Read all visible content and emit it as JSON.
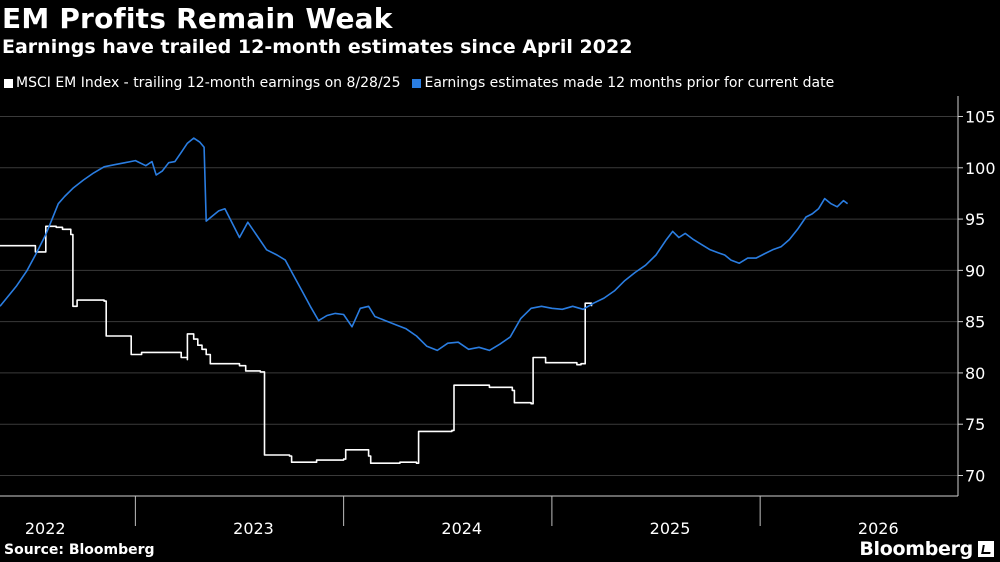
{
  "title": "EM Profits Remain Weak",
  "subtitle": "Earnings have trailed 12-month estimates since April 2022",
  "source": "Source: Bloomberg",
  "brand": "Bloomberg",
  "colors": {
    "background": "#000000",
    "actual": "#ffffff",
    "estimate": "#2a7de1",
    "grid": "#3a3a3a"
  },
  "chart_data": {
    "type": "line",
    "title": "EM Profits Remain Weak",
    "xlabel": "",
    "ylabel": "",
    "xlim": [
      2021.85,
      2026.45
    ],
    "ylim": [
      68,
      107
    ],
    "yticks": [
      70,
      75,
      80,
      85,
      90,
      95,
      100,
      105
    ],
    "xticks": [
      {
        "label": "2022",
        "pos": 2022.0
      },
      {
        "label": "2023",
        "pos": 2023.0
      },
      {
        "label": "2024",
        "pos": 2024.0
      },
      {
        "label": "2025",
        "pos": 2025.0
      },
      {
        "label": "2026",
        "pos": 2026.0
      }
    ],
    "year_boundaries": [
      2022.5,
      2023.5,
      2024.5,
      2025.5
    ],
    "grid": true,
    "legend_position": "top-left",
    "series": [
      {
        "name": "MSCI EM Index - trailing 12-month earnings on 8/28/25",
        "color": "#ffffff",
        "step": true,
        "points": [
          [
            2021.85,
            92.4
          ],
          [
            2022.01,
            92.4
          ],
          [
            2022.02,
            91.8
          ],
          [
            2022.07,
            91.8
          ],
          [
            2022.07,
            94.3
          ],
          [
            2022.12,
            94.2
          ],
          [
            2022.15,
            94.0
          ],
          [
            2022.19,
            93.5
          ],
          [
            2022.2,
            86.5
          ],
          [
            2022.22,
            87.1
          ],
          [
            2022.35,
            87.0
          ],
          [
            2022.36,
            83.6
          ],
          [
            2022.48,
            83.6
          ],
          [
            2022.48,
            81.8
          ],
          [
            2022.53,
            82.0
          ],
          [
            2022.72,
            81.5
          ],
          [
            2022.75,
            81.3
          ],
          [
            2022.75,
            83.8
          ],
          [
            2022.78,
            83.3
          ],
          [
            2022.8,
            82.7
          ],
          [
            2022.82,
            82.3
          ],
          [
            2022.84,
            81.8
          ],
          [
            2022.86,
            80.9
          ],
          [
            2023.0,
            80.7
          ],
          [
            2023.03,
            80.2
          ],
          [
            2023.1,
            80.1
          ],
          [
            2023.12,
            72.0
          ],
          [
            2023.24,
            71.9
          ],
          [
            2023.25,
            71.3
          ],
          [
            2023.37,
            71.5
          ],
          [
            2023.5,
            71.6
          ],
          [
            2023.51,
            72.5
          ],
          [
            2023.62,
            71.9
          ],
          [
            2023.63,
            71.2
          ],
          [
            2023.77,
            71.3
          ],
          [
            2023.85,
            71.2
          ],
          [
            2023.86,
            74.3
          ],
          [
            2024.02,
            74.4
          ],
          [
            2024.03,
            78.8
          ],
          [
            2024.12,
            78.8
          ],
          [
            2024.2,
            78.6
          ],
          [
            2024.31,
            78.3
          ],
          [
            2024.32,
            77.1
          ],
          [
            2024.4,
            77.0
          ],
          [
            2024.41,
            81.5
          ],
          [
            2024.47,
            81.0
          ],
          [
            2024.62,
            80.8
          ],
          [
            2024.64,
            80.9
          ],
          [
            2024.66,
            86.8
          ],
          [
            2024.69,
            86.5
          ]
        ]
      },
      {
        "name": "Earnings estimates made 12 months prior for current date",
        "color": "#2a7de1",
        "step": false,
        "points": [
          [
            2021.85,
            86.5
          ],
          [
            2021.93,
            88.5
          ],
          [
            2021.98,
            90.0
          ],
          [
            2022.02,
            91.5
          ],
          [
            2022.07,
            93.5
          ],
          [
            2022.1,
            95.0
          ],
          [
            2022.13,
            96.5
          ],
          [
            2022.16,
            97.2
          ],
          [
            2022.2,
            98.0
          ],
          [
            2022.25,
            98.8
          ],
          [
            2022.3,
            99.5
          ],
          [
            2022.35,
            100.1
          ],
          [
            2022.4,
            100.3
          ],
          [
            2022.45,
            100.5
          ],
          [
            2022.5,
            100.7
          ],
          [
            2022.55,
            100.2
          ],
          [
            2022.58,
            100.6
          ],
          [
            2022.6,
            99.3
          ],
          [
            2022.63,
            99.7
          ],
          [
            2022.66,
            100.5
          ],
          [
            2022.69,
            100.6
          ],
          [
            2022.72,
            101.5
          ],
          [
            2022.75,
            102.4
          ],
          [
            2022.78,
            102.9
          ],
          [
            2022.81,
            102.5
          ],
          [
            2022.83,
            102.0
          ],
          [
            2022.84,
            94.8
          ],
          [
            2022.87,
            95.3
          ],
          [
            2022.9,
            95.8
          ],
          [
            2022.93,
            96.0
          ],
          [
            2022.96,
            94.8
          ],
          [
            2023.0,
            93.2
          ],
          [
            2023.04,
            94.7
          ],
          [
            2023.08,
            93.5
          ],
          [
            2023.13,
            92.0
          ],
          [
            2023.18,
            91.5
          ],
          [
            2023.22,
            91.0
          ],
          [
            2023.26,
            89.5
          ],
          [
            2023.3,
            88.0
          ],
          [
            2023.34,
            86.5
          ],
          [
            2023.38,
            85.1
          ],
          [
            2023.42,
            85.6
          ],
          [
            2023.46,
            85.8
          ],
          [
            2023.5,
            85.7
          ],
          [
            2023.54,
            84.5
          ],
          [
            2023.58,
            86.3
          ],
          [
            2023.62,
            86.5
          ],
          [
            2023.65,
            85.5
          ],
          [
            2023.7,
            85.1
          ],
          [
            2023.75,
            84.7
          ],
          [
            2023.8,
            84.3
          ],
          [
            2023.85,
            83.6
          ],
          [
            2023.9,
            82.6
          ],
          [
            2023.95,
            82.2
          ],
          [
            2024.0,
            82.9
          ],
          [
            2024.05,
            83.0
          ],
          [
            2024.1,
            82.3
          ],
          [
            2024.15,
            82.5
          ],
          [
            2024.2,
            82.2
          ],
          [
            2024.25,
            82.8
          ],
          [
            2024.3,
            83.5
          ],
          [
            2024.35,
            85.3
          ],
          [
            2024.4,
            86.3
          ],
          [
            2024.45,
            86.5
          ],
          [
            2024.5,
            86.3
          ],
          [
            2024.55,
            86.2
          ],
          [
            2024.6,
            86.5
          ],
          [
            2024.65,
            86.2
          ],
          [
            2024.7,
            86.8
          ],
          [
            2024.75,
            87.3
          ],
          [
            2024.8,
            88.0
          ],
          [
            2024.85,
            89.0
          ],
          [
            2024.9,
            89.8
          ],
          [
            2024.95,
            90.5
          ],
          [
            2025.0,
            91.5
          ],
          [
            2025.05,
            93.0
          ],
          [
            2025.08,
            93.8
          ],
          [
            2025.11,
            93.2
          ],
          [
            2025.14,
            93.6
          ],
          [
            2025.18,
            93.0
          ],
          [
            2025.22,
            92.5
          ],
          [
            2025.26,
            92.0
          ],
          [
            2025.3,
            91.7
          ],
          [
            2025.33,
            91.5
          ],
          [
            2025.36,
            91.0
          ],
          [
            2025.4,
            90.7
          ],
          [
            2025.44,
            91.2
          ],
          [
            2025.48,
            91.2
          ],
          [
            2025.52,
            91.6
          ],
          [
            2025.56,
            92.0
          ],
          [
            2025.6,
            92.3
          ],
          [
            2025.64,
            93.0
          ],
          [
            2025.68,
            94.0
          ],
          [
            2025.72,
            95.2
          ],
          [
            2025.75,
            95.5
          ],
          [
            2025.78,
            96.0
          ],
          [
            2025.81,
            97.0
          ],
          [
            2025.84,
            96.5
          ],
          [
            2025.87,
            96.2
          ],
          [
            2025.9,
            96.8
          ],
          [
            2025.92,
            96.5
          ]
        ]
      }
    ]
  }
}
